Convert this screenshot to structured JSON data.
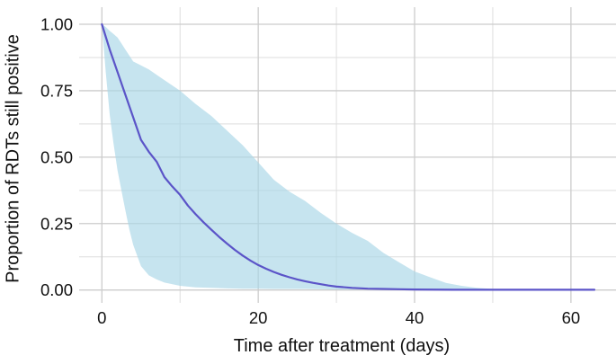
{
  "chart_data": {
    "type": "line",
    "xlabel": "Time after treatment (days)",
    "ylabel": "Proportion of RDTs still positive",
    "xlim": [
      -3,
      66
    ],
    "ylim": [
      -0.05,
      1.06
    ],
    "grid": "on",
    "legend": "none",
    "x_axis": {
      "ticks": [
        {
          "value": 0,
          "label": "0"
        },
        {
          "value": 20,
          "label": "20"
        },
        {
          "value": 40,
          "label": "40"
        },
        {
          "value": 60,
          "label": "60"
        }
      ],
      "minor_ticks": [
        10,
        30,
        50
      ]
    },
    "y_axis": {
      "ticks": [
        {
          "value": 0,
          "label": "0.00"
        },
        {
          "value": 0.25,
          "label": "0.25"
        },
        {
          "value": 0.5,
          "label": "0.50"
        },
        {
          "value": 0.75,
          "label": "0.75"
        },
        {
          "value": 1,
          "label": "1.00"
        }
      ],
      "minor_ticks": [
        0.125,
        0.375,
        0.625,
        0.875
      ]
    },
    "series": [
      {
        "name": "median-proportion-positive",
        "color": "#5b54c8",
        "x": [
          0,
          1,
          2,
          3,
          4,
          5,
          6,
          7,
          8,
          9,
          10,
          11,
          12,
          13,
          14,
          15,
          16,
          17,
          18,
          19,
          20,
          21,
          22,
          23,
          24,
          25,
          26,
          27,
          28,
          29,
          30,
          32,
          34,
          36,
          38,
          40,
          45,
          50,
          55,
          63
        ],
        "y": [
          1.0,
          0.905,
          0.82,
          0.735,
          0.65,
          0.565,
          0.52,
          0.483,
          0.425,
          0.39,
          0.358,
          0.318,
          0.285,
          0.255,
          0.227,
          0.2,
          0.175,
          0.151,
          0.13,
          0.111,
          0.094,
          0.08,
          0.068,
          0.057,
          0.048,
          0.04,
          0.033,
          0.027,
          0.022,
          0.017,
          0.013,
          0.008,
          0.005,
          0.004,
          0.003,
          0.002,
          0.001,
          0.001,
          0.001,
          0.001
        ]
      }
    ],
    "band": {
      "name": "credible-interval-band",
      "color": "#a9d6e6",
      "opacity": 0.66,
      "x": [
        0,
        0.5,
        1,
        1.5,
        2,
        2.5,
        3,
        3.5,
        4,
        5,
        6,
        7,
        8,
        10,
        12,
        14,
        16,
        18,
        20,
        22,
        24,
        26,
        28,
        30,
        32,
        34,
        36,
        38,
        40,
        42,
        44,
        46,
        48,
        50,
        52,
        55,
        57
      ],
      "upper": [
        1.0,
        0.99,
        0.975,
        0.963,
        0.95,
        0.928,
        0.905,
        0.883,
        0.86,
        0.845,
        0.83,
        0.81,
        0.79,
        0.75,
        0.7,
        0.655,
        0.6,
        0.545,
        0.48,
        0.415,
        0.37,
        0.335,
        0.29,
        0.25,
        0.215,
        0.185,
        0.14,
        0.105,
        0.07,
        0.048,
        0.027,
        0.016,
        0.008,
        0.004,
        0.002,
        0.001,
        0.001
      ],
      "lower": [
        1.0,
        0.82,
        0.66,
        0.55,
        0.45,
        0.375,
        0.3,
        0.23,
        0.17,
        0.09,
        0.055,
        0.04,
        0.028,
        0.016,
        0.01,
        0.008,
        0.006,
        0.005,
        0.005,
        0.004,
        0.004,
        0.004,
        0.003,
        0.002,
        0.002,
        0.002,
        0.001,
        0.001,
        0.001,
        0.001,
        0.001,
        0.001,
        0.001,
        0.001,
        0.001,
        0.001,
        0.001
      ]
    },
    "style": {
      "grid_major_color": "#cccccc",
      "grid_minor_color": "#dedede",
      "tick_label_color": "#111111",
      "line_width": 2.2
    }
  }
}
